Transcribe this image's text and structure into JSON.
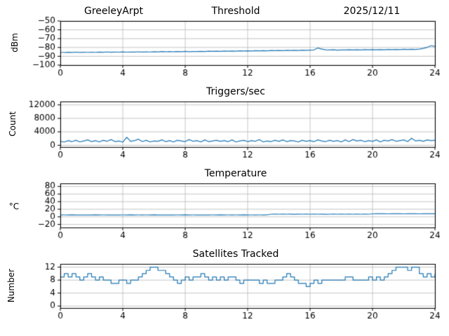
{
  "chart_data": [
    {
      "id": "threshold",
      "type": "line",
      "title_left": "GreeleyArpt",
      "title_center": "Threshold",
      "title_right": "2025/12/11",
      "ylabel": "dBm",
      "xlim": [
        0,
        24
      ],
      "xticks": [
        0,
        4,
        8,
        12,
        16,
        20,
        24
      ],
      "ylim": [
        -100,
        -50
      ],
      "yticks": [
        -50,
        -60,
        -70,
        -80,
        -90,
        -100
      ],
      "color": "#1f77b4",
      "grid": true,
      "values": [
        -85.5,
        -85.7,
        -85.4,
        -85.6,
        -85.3,
        -85.6,
        -85.4,
        -85.5,
        -85.3,
        -85.5,
        -85.2,
        -85.4,
        -85.1,
        -85.4,
        -85.2,
        -85.3,
        -85.0,
        -85.3,
        -85.1,
        -85.2,
        -84.9,
        -85.2,
        -85.0,
        -85.1,
        -84.8,
        -85.0,
        -84.7,
        -84.9,
        -84.6,
        -84.9,
        -84.7,
        -84.8,
        -84.5,
        -84.8,
        -84.6,
        -84.7,
        -84.4,
        -84.6,
        -84.3,
        -84.5,
        -84.2,
        -84.4,
        -84.1,
        -84.3,
        -84.0,
        -84.2,
        -83.9,
        -84.1,
        -83.8,
        -84.0,
        -83.7,
        -83.9,
        -83.6,
        -83.8,
        -83.5,
        -83.7,
        -83.4,
        -83.6,
        -83.3,
        -83.5,
        -83.2,
        -83.4,
        -83.1,
        -83.3,
        -83.0,
        -82.8,
        -80.6,
        -81.8,
        -82.6,
        -82.9,
        -82.7,
        -83.0,
        -82.8,
        -82.9,
        -82.7,
        -82.8,
        -82.6,
        -82.8,
        -82.5,
        -82.7,
        -82.5,
        -82.6,
        -82.4,
        -82.6,
        -82.3,
        -82.5,
        -82.2,
        -82.4,
        -82.1,
        -82.3,
        -82.0,
        -82.2,
        -81.8,
        -81.0,
        -79.8,
        -78.0,
        -78.8
      ]
    },
    {
      "id": "triggers",
      "type": "line",
      "title_center": "Triggers/sec",
      "ylabel": "Count",
      "xlim": [
        0,
        24
      ],
      "xticks": [
        0,
        4,
        8,
        12,
        16,
        20,
        24
      ],
      "ylim": [
        -500,
        13000
      ],
      "yticks": [
        0,
        4000,
        8000,
        12000
      ],
      "color": "#1f77b4",
      "grid": true,
      "values": [
        1200,
        950,
        1400,
        1100,
        1500,
        1000,
        1300,
        1600,
        1100,
        1400,
        1000,
        1500,
        1200,
        1700,
        1100,
        1300,
        950,
        2400,
        1200,
        1400,
        1800,
        1100,
        1500,
        1000,
        1300,
        1200,
        1600,
        1100,
        1400,
        1000,
        1500,
        1300,
        1100,
        1700,
        1200,
        1400,
        1000,
        1600,
        1100,
        1300,
        1500,
        1200,
        1400,
        1100,
        1600,
        1000,
        1300,
        1500,
        1100,
        1400,
        1200,
        1700,
        1000,
        1300,
        1100,
        1500,
        1200,
        1600,
        1100,
        1400,
        1300,
        1000,
        1500,
        1200,
        1400,
        1100,
        1600,
        1300,
        1100,
        1500,
        1200,
        1400,
        1000,
        1600,
        1100,
        1700,
        1300,
        1500,
        1100,
        1400,
        1200,
        1600,
        1000,
        1500,
        1300,
        1700,
        1200,
        1400,
        1600,
        1100,
        2100,
        1300,
        1500,
        1200,
        1600,
        1400,
        1500
      ]
    },
    {
      "id": "temperature",
      "type": "line",
      "title_center": "Temperature",
      "ylabel": "°C",
      "xlim": [
        0,
        24
      ],
      "xticks": [
        0,
        4,
        8,
        12,
        16,
        20,
        24
      ],
      "ylim": [
        -28,
        88
      ],
      "yticks": [
        -20,
        0,
        20,
        40,
        60,
        80
      ],
      "color": "#1f77b4",
      "grid": true,
      "values": [
        5.0,
        5.1,
        5.0,
        5.2,
        5.0,
        5.1,
        4.9,
        5.1,
        5.0,
        5.2,
        5.0,
        5.1,
        5.0,
        5.1,
        4.9,
        5.0,
        5.1,
        5.0,
        5.2,
        5.0,
        5.1,
        5.0,
        5.1,
        5.0,
        5.2,
        5.0,
        5.1,
        4.9,
        5.1,
        5.0,
        5.1,
        5.0,
        5.2,
        5.0,
        5.1,
        5.0,
        5.1,
        4.9,
        5.0,
        5.1,
        5.0,
        5.2,
        5.0,
        5.1,
        5.0,
        5.1,
        5.0,
        5.2,
        5.0,
        5.1,
        5.0,
        5.1,
        5.0,
        5.2,
        7.0,
        7.1,
        7.0,
        7.2,
        7.0,
        7.1,
        6.9,
        7.1,
        7.0,
        7.2,
        7.0,
        7.1,
        7.0,
        7.1,
        6.9,
        7.0,
        7.1,
        7.0,
        7.2,
        7.0,
        7.1,
        7.0,
        7.1,
        7.0,
        7.2,
        7.0,
        7.9,
        8.0,
        8.1,
        8.0,
        7.9,
        8.0,
        8.1,
        8.0,
        7.9,
        8.0,
        8.1,
        8.0,
        7.9,
        8.0,
        8.1,
        8.0,
        8.0
      ]
    },
    {
      "id": "satellites",
      "type": "step",
      "title_center": "Satellites Tracked",
      "ylabel": "Number",
      "xlim": [
        0,
        24
      ],
      "xticks": [
        0,
        4,
        8,
        12,
        16,
        20,
        24
      ],
      "ylim": [
        -0.6,
        13
      ],
      "yticks": [
        0,
        4,
        8,
        12
      ],
      "color": "#1f77b4",
      "grid": true,
      "values": [
        9,
        10,
        9,
        10,
        9,
        8,
        9,
        10,
        9,
        8,
        9,
        8,
        8,
        7,
        7,
        8,
        8,
        7,
        8,
        8,
        9,
        10,
        11,
        12,
        12,
        11,
        11,
        10,
        9,
        8,
        7,
        8,
        9,
        8,
        9,
        9,
        10,
        9,
        8,
        9,
        8,
        9,
        8,
        9,
        9,
        8,
        7,
        8,
        8,
        8,
        8,
        7,
        8,
        7,
        7,
        8,
        8,
        9,
        10,
        9,
        8,
        7,
        7,
        6,
        7,
        8,
        7,
        8,
        8,
        8,
        8,
        8,
        8,
        9,
        9,
        8,
        8,
        8,
        8,
        9,
        8,
        9,
        8,
        9,
        10,
        11,
        12,
        12,
        12,
        11,
        12,
        12,
        10,
        9,
        10,
        9,
        10
      ]
    }
  ]
}
